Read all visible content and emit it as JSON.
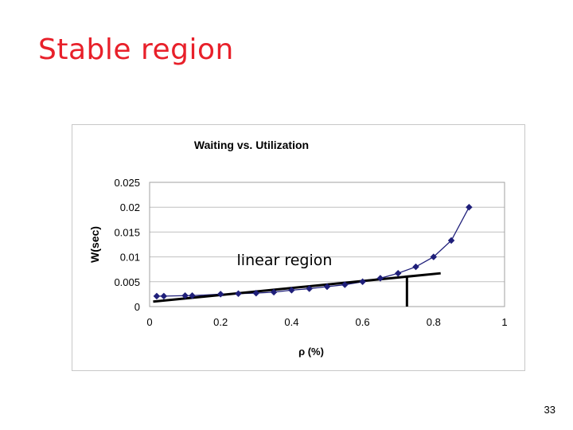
{
  "slide": {
    "title": "Stable region",
    "page_number": "33"
  },
  "chart_data": {
    "type": "scatter",
    "title": "Waiting vs. Utilization",
    "xlabel": "ρ (%)",
    "ylabel": "W(sec)",
    "xlim": [
      0,
      1
    ],
    "ylim": [
      0,
      0.025
    ],
    "grid": true,
    "x_ticks": [
      0,
      0.2,
      0.4,
      0.6,
      0.8,
      1
    ],
    "x_tick_labels": [
      "0",
      "0.2",
      "0.4",
      "0.6",
      "0.8",
      "1"
    ],
    "y_ticks": [
      0,
      0.005,
      0.01,
      0.015,
      0.02,
      0.025
    ],
    "y_tick_labels": [
      "0",
      "0.005",
      "0.01",
      "0.015",
      "0.02",
      "0.025"
    ],
    "series": [
      {
        "name": "W",
        "x": [
          0.02,
          0.04,
          0.1,
          0.12,
          0.2,
          0.25,
          0.3,
          0.35,
          0.4,
          0.45,
          0.5,
          0.55,
          0.6,
          0.65,
          0.7,
          0.75,
          0.8,
          0.85,
          0.9
        ],
        "y": [
          0.0021,
          0.0021,
          0.0022,
          0.0022,
          0.0025,
          0.0026,
          0.0027,
          0.0029,
          0.0033,
          0.0036,
          0.004,
          0.0044,
          0.005,
          0.0057,
          0.0067,
          0.008,
          0.01,
          0.0133,
          0.02
        ],
        "color": "#1f1f7a"
      }
    ],
    "annotation": {
      "text": "linear region",
      "label_at": [
        0.38,
        0.0083
      ],
      "trend_line": {
        "x": [
          0.01,
          0.82
        ],
        "y": [
          0.001,
          0.0067
        ]
      },
      "boundary_x": 0.725,
      "boundary_y_top": 0.0062
    }
  }
}
